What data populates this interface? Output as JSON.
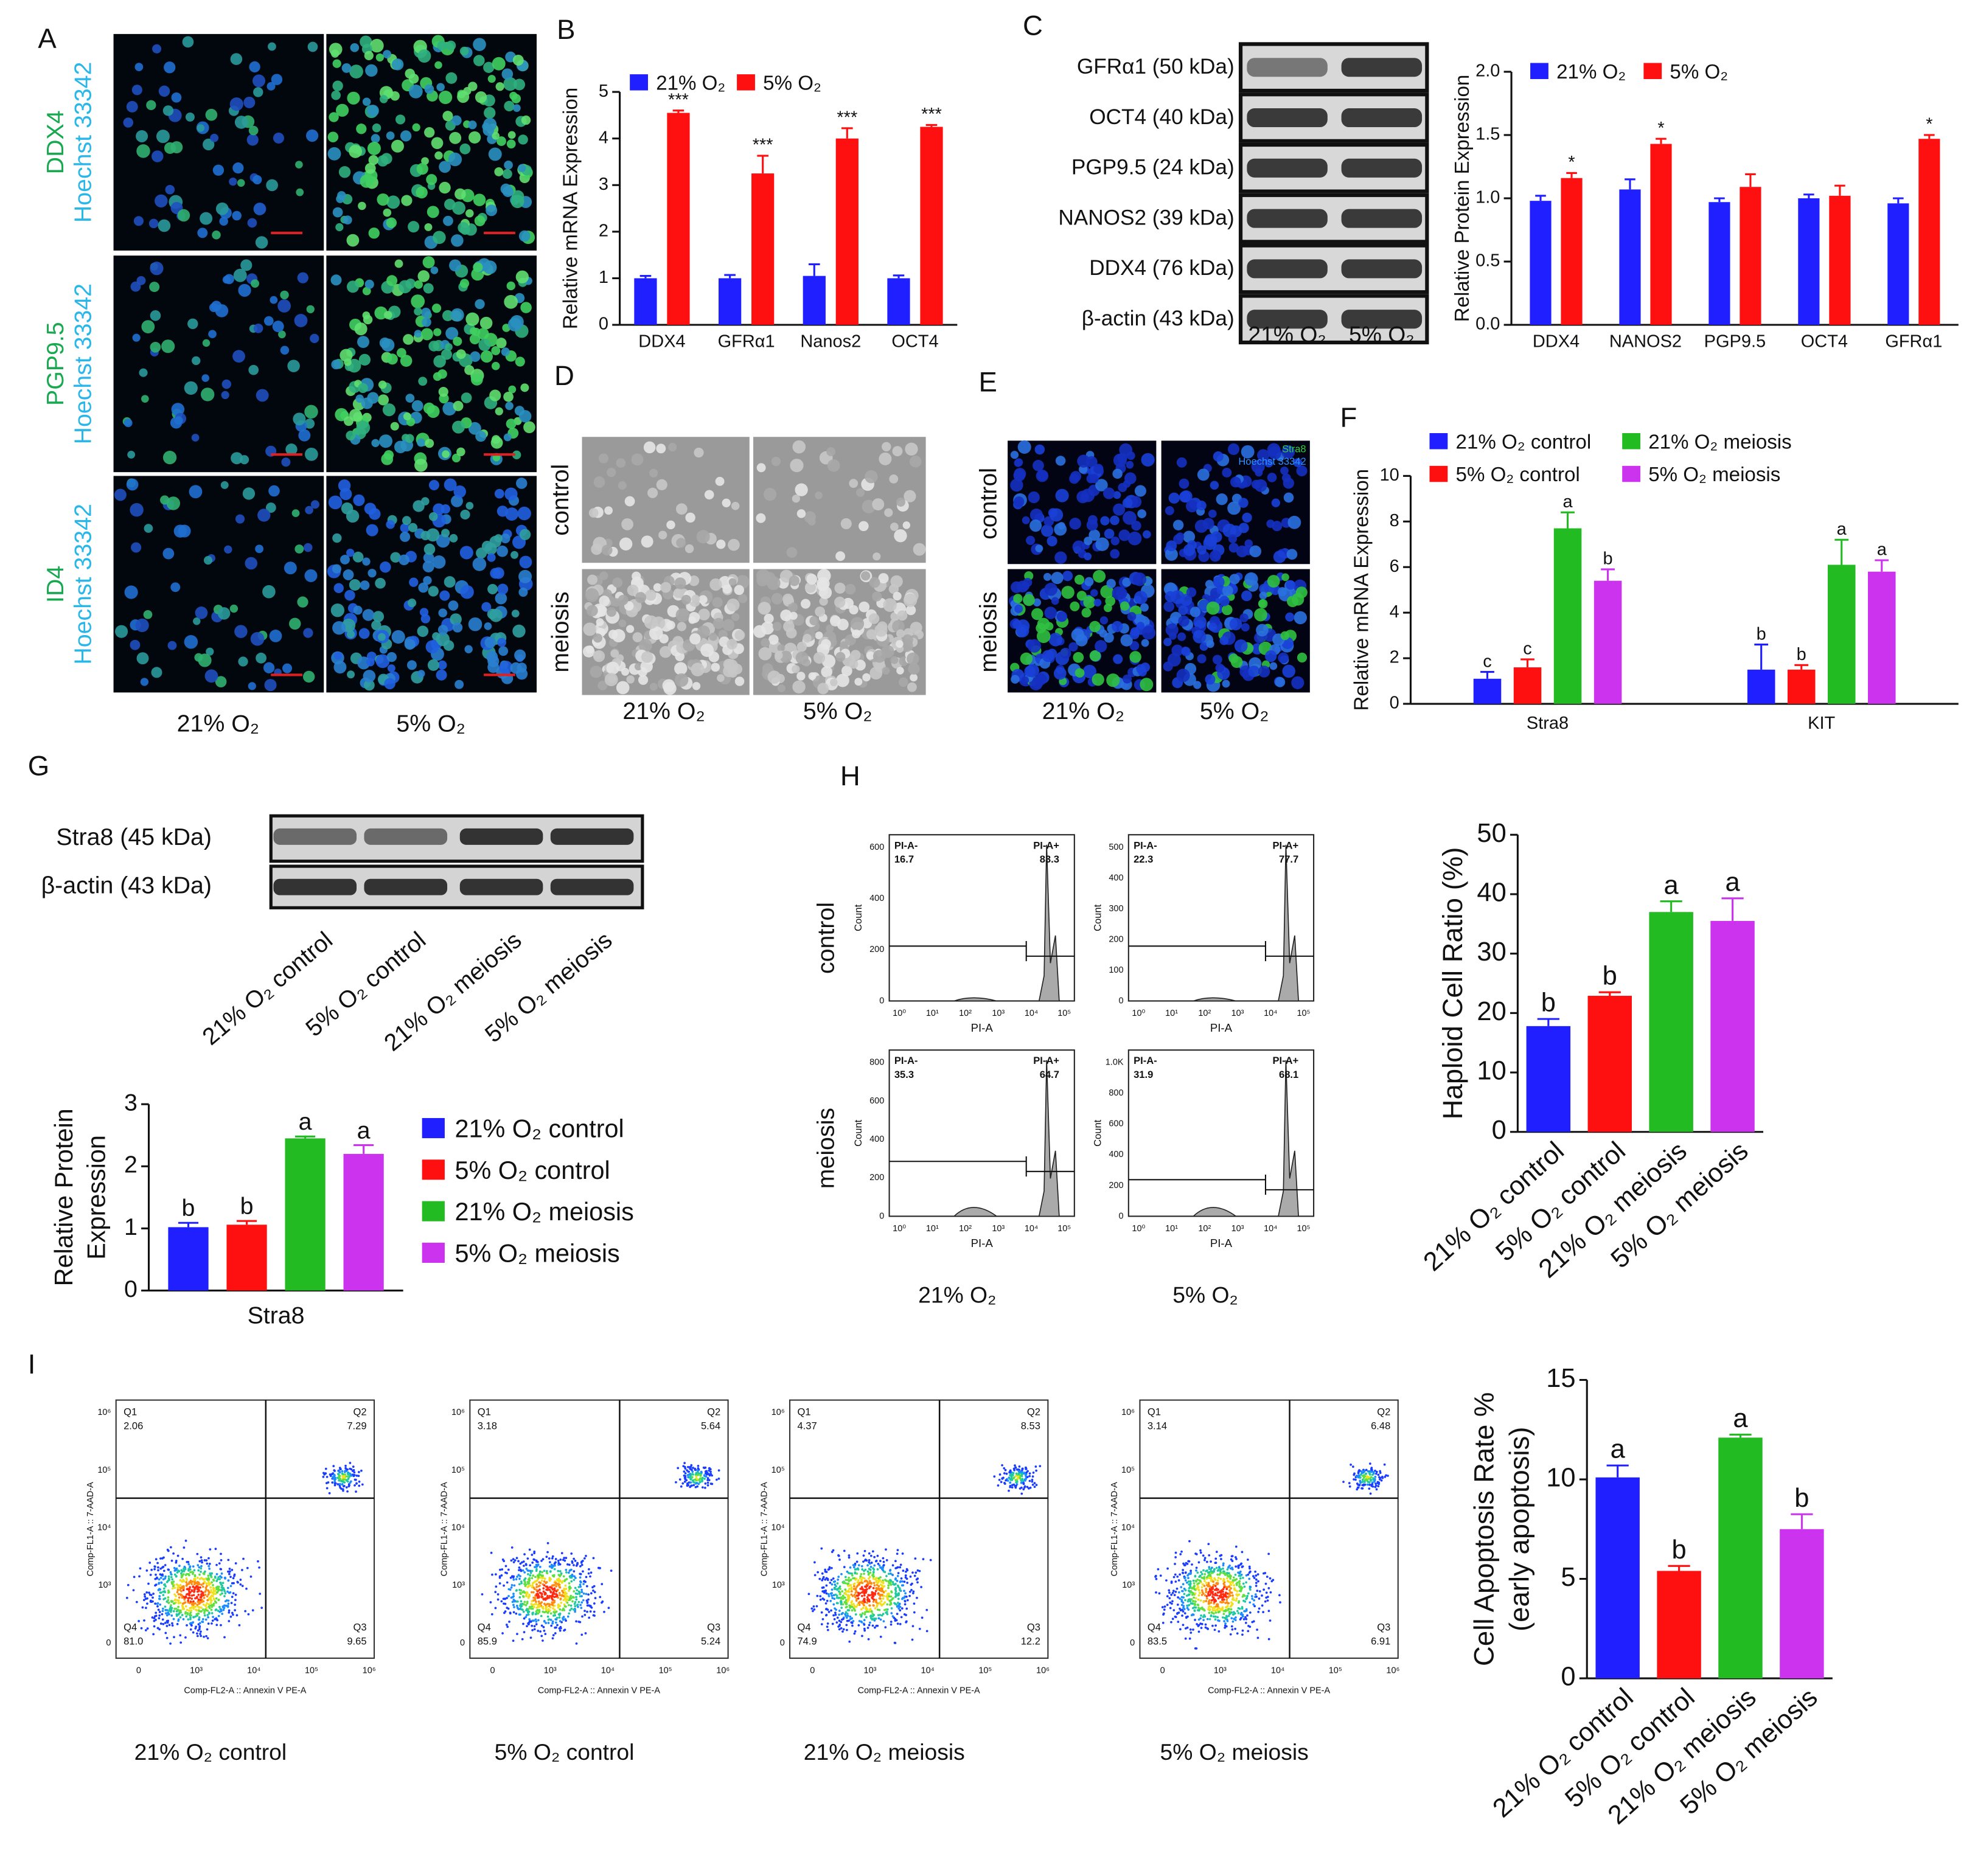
{
  "panel_labels": [
    "A",
    "B",
    "C",
    "D",
    "E",
    "F",
    "G",
    "H",
    "I"
  ],
  "panel_a": {
    "rows": [
      {
        "stain": "DDX4",
        "counterstain": "Hoechst 33342"
      },
      {
        "stain": "PGP9.5",
        "counterstain": "Hoechst 33342"
      },
      {
        "stain": "ID4",
        "counterstain": "Hoechst 33342"
      }
    ],
    "columns": [
      "21% O₂",
      "5% O₂"
    ]
  },
  "blot_c": {
    "bands": [
      "GFRα1 (50 kDa)",
      "OCT4 (40 kDa)",
      "PGP9.5 (24 kDa)",
      "NANOS2 (39 kDa)",
      "DDX4 (76 kDa)",
      "β-actin (43 kDa)"
    ],
    "lanes": [
      "21% O₂",
      "5% O₂"
    ]
  },
  "panel_d": {
    "rows": [
      "control",
      "meiosis"
    ],
    "columns": [
      "21% O₂",
      "5% O₂"
    ]
  },
  "panel_e": {
    "rows": [
      "control",
      "meiosis"
    ],
    "columns": [
      "21% O₂",
      "5% O₂"
    ],
    "stains": [
      "Stra8",
      "Hoechst 33342"
    ]
  },
  "blot_g": {
    "bands": [
      "Stra8 (45 kDa)",
      "β-actin (43 kDa)"
    ],
    "lanes": [
      "21% O₂ control",
      "5% O₂ control",
      "21% O₂ meiosis",
      "5% O₂ meiosis"
    ]
  },
  "flow_h": {
    "rows": [
      "control",
      "meiosis"
    ],
    "columns": [
      "21% O₂",
      "5% O₂"
    ],
    "x_label": "PI-A",
    "y_label": "Count",
    "gate_labels": [
      "PI-A-",
      "PI-A+"
    ],
    "xticks": [
      "10⁰",
      "10¹",
      "10²",
      "10³",
      "10⁴",
      "10⁵"
    ],
    "plots": [
      {
        "values": [
          "16.7",
          "83.3"
        ],
        "yticks": [
          "0",
          "200",
          "400",
          "600"
        ]
      },
      {
        "values": [
          "22.3",
          "77.7"
        ],
        "yticks": [
          "0",
          "100",
          "200",
          "300",
          "400",
          "500"
        ]
      },
      {
        "values": [
          "35.3",
          "64.7"
        ],
        "yticks": [
          "0",
          "200",
          "400",
          "600",
          "800"
        ]
      },
      {
        "values": [
          "31.9",
          "68.1"
        ],
        "yticks": [
          "0",
          "200",
          "400",
          "600",
          "800",
          "1.0K"
        ]
      }
    ]
  },
  "flow_i": {
    "x_label": "Comp-FL2-A :: Annexin V PE-A",
    "y_label": "Comp-FL1-A :: 7-AAD-A",
    "xticks": [
      "0",
      "10³",
      "10⁴",
      "10⁵",
      "10⁶"
    ],
    "yticks": [
      "0",
      "10³",
      "10⁴",
      "10⁵",
      "10⁶"
    ],
    "quadrants": [
      "Q1",
      "Q2",
      "Q3",
      "Q4"
    ],
    "plots": [
      {
        "values": [
          "2.06",
          "7.29",
          "9.65",
          "81.0"
        ],
        "caption": "21% O₂ control"
      },
      {
        "values": [
          "3.18",
          "5.64",
          "5.24",
          "85.9"
        ],
        "caption": "5% O₂ control"
      },
      {
        "values": [
          "4.37",
          "8.53",
          "12.2",
          "74.9"
        ],
        "caption": "21% O₂ meiosis"
      },
      {
        "values": [
          "3.14",
          "6.48",
          "6.91",
          "83.5"
        ],
        "caption": "5% O₂ meiosis"
      }
    ]
  },
  "chart_data": [
    {
      "type": "bar",
      "ylabel": "Relative mRNA Expression",
      "categories": [
        "DDX4",
        "GFRα1",
        "Nanos2",
        "OCT4"
      ],
      "series": [
        {
          "name": "21% O₂",
          "color": "#1f1fff",
          "values": [
            1.0,
            1.0,
            1.05,
            1.0
          ],
          "errors": [
            0.05,
            0.07,
            0.25,
            0.06
          ]
        },
        {
          "name": "5% O₂",
          "color": "#ff1010",
          "values": [
            4.55,
            3.25,
            4.0,
            4.25
          ],
          "errors": [
            0.05,
            0.38,
            0.22,
            0.04
          ],
          "annotations": [
            "***",
            "***",
            "***",
            "***"
          ]
        }
      ],
      "ylim": [
        0,
        5
      ],
      "yticks": [
        0,
        1,
        2,
        3,
        4,
        5
      ]
    },
    {
      "type": "bar",
      "ylabel": "Relative Protein Expression",
      "categories": [
        "DDX4",
        "NANOS2",
        "PGP9.5",
        "OCT4",
        "GFRα1"
      ],
      "series": [
        {
          "name": "21% O₂",
          "color": "#1f1fff",
          "values": [
            0.98,
            1.07,
            0.97,
            1.0,
            0.96
          ],
          "errors": [
            0.04,
            0.08,
            0.03,
            0.03,
            0.04
          ]
        },
        {
          "name": "5% O₂",
          "color": "#ff1010",
          "values": [
            1.16,
            1.43,
            1.09,
            1.02,
            1.47
          ],
          "errors": [
            0.04,
            0.04,
            0.1,
            0.08,
            0.03
          ],
          "annotations": [
            "*",
            "*",
            null,
            null,
            "*"
          ]
        }
      ],
      "ylim": [
        0,
        2
      ],
      "yticks": [
        {
          "value": 0,
          "label": "0.0"
        },
        {
          "value": 0.5,
          "label": "0.5"
        },
        {
          "value": 1,
          "label": "1.0"
        },
        {
          "value": 1.5,
          "label": "1.5"
        },
        {
          "value": 2,
          "label": "2.0"
        }
      ]
    },
    {
      "type": "bar",
      "ylabel": "Relative mRNA Expression",
      "categories": [
        "Stra8",
        "KIT"
      ],
      "series": [
        {
          "name": "21% O₂ control",
          "color": "#1f1fff",
          "values": [
            1.1,
            1.5
          ],
          "errors": [
            0.3,
            1.1
          ],
          "annotations": [
            "c",
            "b"
          ]
        },
        {
          "name": "5% O₂ control",
          "color": "#ff1010",
          "values": [
            1.6,
            1.5
          ],
          "errors": [
            0.35,
            0.2
          ],
          "annotations": [
            "c",
            "b"
          ]
        },
        {
          "name": "21% O₂ meiosis",
          "color": "#22bb22",
          "values": [
            7.7,
            6.1
          ],
          "errors": [
            0.7,
            1.1
          ],
          "annotations": [
            "a",
            "a"
          ]
        },
        {
          "name": "5% O₂ meiosis",
          "color": "#cc33ee",
          "values": [
            5.4,
            5.8
          ],
          "errors": [
            0.5,
            0.5
          ],
          "annotations": [
            "b",
            "a"
          ]
        }
      ],
      "ylim": [
        0,
        10
      ],
      "yticks": [
        0,
        2,
        4,
        6,
        8,
        10
      ]
    },
    {
      "type": "bar",
      "ylabel": [
        "Relative Protein",
        "Expression"
      ],
      "categories": [
        "Stra8"
      ],
      "series": [
        {
          "name": "21% O₂ control",
          "color": "#1f1fff",
          "values": [
            1.02
          ],
          "errors": [
            0.07
          ],
          "annotations": [
            "b"
          ]
        },
        {
          "name": "5% O₂ control",
          "color": "#ff1010",
          "values": [
            1.06
          ],
          "errors": [
            0.06
          ],
          "annotations": [
            "b"
          ]
        },
        {
          "name": "21% O₂ meiosis",
          "color": "#22bb22",
          "values": [
            2.45
          ],
          "errors": [
            0.03
          ],
          "annotations": [
            "a"
          ]
        },
        {
          "name": "5% O₂ meiosis",
          "color": "#cc33ee",
          "values": [
            2.2
          ],
          "errors": [
            0.14
          ],
          "annotations": [
            "a"
          ]
        }
      ],
      "ylim": [
        0,
        3
      ],
      "yticks": [
        0,
        1,
        2,
        3
      ]
    },
    {
      "type": "bar",
      "ylabel": "Haploid Cell Ratio (%)",
      "categories": [
        "21% O₂ control",
        "5% O₂ control",
        "21% O₂ meiosis",
        "5% O₂ meiosis"
      ],
      "series": [
        {
          "colors": [
            "#1f1fff",
            "#ff1010",
            "#22bb22",
            "#cc33ee"
          ],
          "values": [
            17.8,
            22.9,
            37.0,
            35.5
          ],
          "errors": [
            1.2,
            0.6,
            1.8,
            3.8
          ],
          "annotations": [
            "b",
            "b",
            "a",
            "a"
          ]
        }
      ],
      "ylim": [
        0,
        50
      ],
      "yticks": [
        0,
        10,
        20,
        30,
        40,
        50
      ]
    },
    {
      "type": "bar",
      "ylabel": [
        "Cell Apoptosis Rate %",
        "(early apoptosis)"
      ],
      "categories": [
        "21% O₂ control",
        "5% O₂ control",
        "21% O₂ meiosis",
        "5% O₂ meiosis"
      ],
      "series": [
        {
          "colors": [
            "#1f1fff",
            "#ff1010",
            "#22bb22",
            "#cc33ee"
          ],
          "values": [
            10.1,
            5.4,
            12.1,
            7.5
          ],
          "errors": [
            0.6,
            0.25,
            0.15,
            0.75
          ],
          "annotations": [
            "a",
            "b",
            "a",
            "b"
          ]
        }
      ],
      "ylim": [
        0,
        15
      ],
      "yticks": [
        0,
        5,
        10,
        15
      ]
    }
  ]
}
